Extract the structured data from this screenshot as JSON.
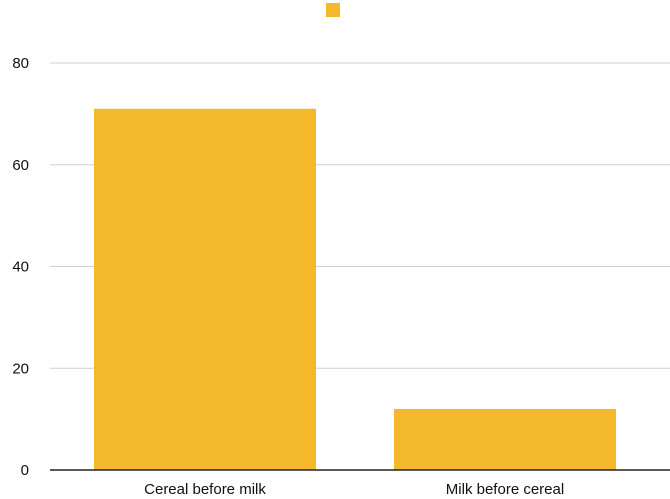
{
  "chart_data": {
    "type": "bar",
    "categories": [
      "Cereal before milk",
      "Milk before cereal"
    ],
    "values": [
      71,
      12
    ],
    "ylim": [
      0,
      80
    ],
    "yticks": [
      0,
      20,
      40,
      60,
      80
    ],
    "grid": true,
    "legend": "top-center",
    "series": [
      {
        "color": "#f4b92b",
        "values": [
          71,
          12
        ]
      }
    ]
  }
}
